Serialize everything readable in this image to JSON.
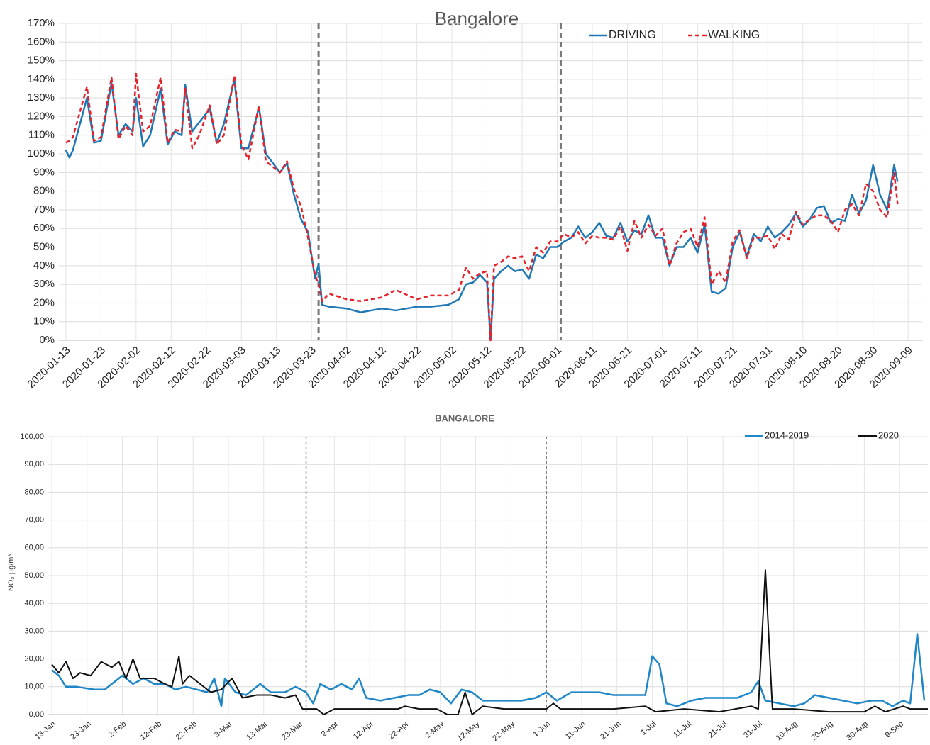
{
  "chart_data": [
    {
      "type": "line",
      "title": "Bangalore",
      "legend": "top-right",
      "grid": true,
      "xlim": [
        "2020-01-11",
        "2020-09-13"
      ],
      "xticks": [
        "2020-01-13",
        "2020-01-23",
        "2020-02-02",
        "2020-02-12",
        "2020-02-22",
        "2020-03-03",
        "2020-03-13",
        "2020-03-23",
        "2020-04-02",
        "2020-04-12",
        "2020-04-22",
        "2020-05-02",
        "2020-05-12",
        "2020-05-22",
        "2020-06-01",
        "2020-06-11",
        "2020-06-21",
        "2020-07-01",
        "2020-07-11",
        "2020-07-21",
        "2020-07-31",
        "2020-08-10",
        "2020-08-20",
        "2020-08-30",
        "2020-09-09"
      ],
      "ylim": [
        0,
        170
      ],
      "yticks": [
        {
          "value": 0,
          "label": "0%"
        },
        {
          "value": 10,
          "label": "10%"
        },
        {
          "value": 20,
          "label": "20%"
        },
        {
          "value": 30,
          "label": "30%"
        },
        {
          "value": 40,
          "label": "40%"
        },
        {
          "value": 50,
          "label": "50%"
        },
        {
          "value": 60,
          "label": "60%"
        },
        {
          "value": 70,
          "label": "70%"
        },
        {
          "value": 80,
          "label": "80%"
        },
        {
          "value": 90,
          "label": "90%"
        },
        {
          "value": 100,
          "label": "100%"
        },
        {
          "value": 110,
          "label": "110%"
        },
        {
          "value": 120,
          "label": "120%"
        },
        {
          "value": 130,
          "label": "130%"
        },
        {
          "value": 140,
          "label": "140%"
        },
        {
          "value": 150,
          "label": "150%"
        },
        {
          "value": 160,
          "label": "160%"
        },
        {
          "value": 170,
          "label": "170%"
        }
      ],
      "vlines": [
        "2020-03-25",
        "2020-06-02"
      ],
      "x": [
        "2020-01-13",
        "2020-01-14",
        "2020-01-15",
        "2020-01-19",
        "2020-01-21",
        "2020-01-23",
        "2020-01-26",
        "2020-01-28",
        "2020-01-30",
        "2020-02-01",
        "2020-02-02",
        "2020-02-04",
        "2020-02-06",
        "2020-02-09",
        "2020-02-11",
        "2020-02-13",
        "2020-02-15",
        "2020-02-16",
        "2020-02-18",
        "2020-02-20",
        "2020-02-23",
        "2020-02-25",
        "2020-02-27",
        "2020-03-01",
        "2020-03-03",
        "2020-03-05",
        "2020-03-08",
        "2020-03-10",
        "2020-03-12",
        "2020-03-14",
        "2020-03-16",
        "2020-03-18",
        "2020-03-20",
        "2020-03-22",
        "2020-03-24",
        "2020-03-25",
        "2020-03-26",
        "2020-03-28",
        "2020-04-02",
        "2020-04-06",
        "2020-04-12",
        "2020-04-16",
        "2020-04-22",
        "2020-04-26",
        "2020-05-01",
        "2020-05-04",
        "2020-05-06",
        "2020-05-08",
        "2020-05-10",
        "2020-05-12",
        "2020-05-13",
        "2020-05-14",
        "2020-05-16",
        "2020-05-18",
        "2020-05-20",
        "2020-05-22",
        "2020-05-24",
        "2020-05-26",
        "2020-05-28",
        "2020-05-30",
        "2020-06-01",
        "2020-06-03",
        "2020-06-05",
        "2020-06-07",
        "2020-06-09",
        "2020-06-11",
        "2020-06-13",
        "2020-06-15",
        "2020-06-17",
        "2020-06-19",
        "2020-06-21",
        "2020-06-23",
        "2020-06-25",
        "2020-06-27",
        "2020-06-29",
        "2020-07-01",
        "2020-07-03",
        "2020-07-05",
        "2020-07-07",
        "2020-07-09",
        "2020-07-11",
        "2020-07-13",
        "2020-07-15",
        "2020-07-17",
        "2020-07-19",
        "2020-07-21",
        "2020-07-23",
        "2020-07-25",
        "2020-07-27",
        "2020-07-29",
        "2020-07-31",
        "2020-08-02",
        "2020-08-04",
        "2020-08-06",
        "2020-08-08",
        "2020-08-10",
        "2020-08-12",
        "2020-08-14",
        "2020-08-16",
        "2020-08-18",
        "2020-08-20",
        "2020-08-22",
        "2020-08-24",
        "2020-08-26",
        "2020-08-28",
        "2020-08-30",
        "2020-09-01",
        "2020-09-03",
        "2020-09-05",
        "2020-09-06"
      ],
      "series": [
        {
          "name": "DRIVING",
          "color": "#1f77b4",
          "line_style": "solid",
          "values": [
            102,
            98,
            102,
            130,
            106,
            107,
            138,
            110,
            116,
            112,
            130,
            104,
            110,
            135,
            105,
            112,
            110,
            137,
            112,
            117,
            124,
            106,
            116,
            140,
            103,
            103,
            125,
            100,
            95,
            90,
            95,
            78,
            65,
            58,
            33,
            41,
            19,
            18,
            17,
            15,
            17,
            16,
            18,
            18,
            19,
            22,
            30,
            31,
            35,
            31,
            0,
            33,
            37,
            40,
            37,
            38,
            33,
            46,
            44,
            50,
            50,
            53,
            55,
            61,
            55,
            58,
            63,
            56,
            55,
            63,
            53,
            59,
            57,
            67,
            55,
            55,
            40,
            50,
            50,
            55,
            47,
            62,
            26,
            25,
            28,
            50,
            58,
            45,
            57,
            53,
            61,
            55,
            58,
            62,
            68,
            61,
            65,
            71,
            72,
            63,
            65,
            64,
            78,
            68,
            75,
            94,
            78,
            70,
            94,
            85
          ]
        },
        {
          "name": "WALKING",
          "color": "#e8202a",
          "line_style": "dashed",
          "values": [
            106,
            107,
            109,
            136,
            107,
            109,
            141,
            108,
            115,
            110,
            143,
            112,
            115,
            141,
            106,
            113,
            112,
            135,
            103,
            110,
            126,
            105,
            110,
            142,
            105,
            97,
            126,
            96,
            93,
            90,
            96,
            81,
            72,
            55,
            35,
            30,
            21,
            25,
            22,
            21,
            23,
            27,
            22,
            24,
            24,
            27,
            39,
            33,
            36,
            37,
            0,
            40,
            42,
            45,
            44,
            45,
            37,
            50,
            47,
            53,
            53,
            57,
            55,
            58,
            52,
            56,
            55,
            55,
            54,
            61,
            48,
            64,
            55,
            62,
            56,
            60,
            40,
            52,
            58,
            60,
            50,
            66,
            30,
            37,
            31,
            53,
            59,
            44,
            55,
            55,
            56,
            49,
            57,
            54,
            69,
            62,
            65,
            67,
            67,
            64,
            58,
            70,
            73,
            67,
            84,
            80,
            70,
            66,
            90,
            73
          ]
        }
      ]
    },
    {
      "type": "line",
      "title": "BANGALORE",
      "ylabel": "NO₂ µg/m³",
      "legend": "top-right",
      "grid": true,
      "xlim": [
        "12-Jan",
        "17-Sep"
      ],
      "xticks": [
        "13-Jan",
        "23-Jan",
        "2-Feb",
        "12-Feb",
        "22-Feb",
        "3-Mar",
        "13-Mar",
        "23-Mar",
        "2-Apr",
        "12-Apr",
        "22-Apr",
        "2-May",
        "12-May",
        "22-May",
        "1-Jun",
        "11-Jun",
        "21-Jun",
        "1-Jul",
        "11-Jul",
        "21-Jul",
        "31-Jul",
        "10-Aug",
        "20-Aug",
        "30-Aug",
        "9-Sep"
      ],
      "ylim": [
        0,
        100
      ],
      "yticks": [
        {
          "value": 0,
          "label": "0,00"
        },
        {
          "value": 10,
          "label": "10,00"
        },
        {
          "value": 20,
          "label": "20,00"
        },
        {
          "value": 30,
          "label": "30,00"
        },
        {
          "value": 40,
          "label": "40,00"
        },
        {
          "value": 50,
          "label": "50,00"
        },
        {
          "value": 60,
          "label": "60,00"
        },
        {
          "value": 70,
          "label": "70,00"
        },
        {
          "value": 80,
          "label": "80,00"
        },
        {
          "value": 90,
          "label": "90,00"
        },
        {
          "value": 100,
          "label": "100,00"
        }
      ],
      "vlines": [
        "25-Mar",
        "1-Jun"
      ],
      "series": [
        {
          "name": "2014-2019",
          "color": "#1f86c8",
          "line_style": "solid",
          "x": [
            "13-Jan",
            "15-Jan",
            "17-Jan",
            "20-Jan",
            "25-Jan",
            "28-Jan",
            "30-Jan",
            "2-Feb",
            "5-Feb",
            "8-Feb",
            "11-Feb",
            "14-Feb",
            "17-Feb",
            "20-Feb",
            "23-Feb",
            "26-Feb",
            "28-Feb",
            "1-Mar",
            "2-Mar",
            "5-Mar",
            "8-Mar",
            "12-Mar",
            "15-Mar",
            "19-Mar",
            "22-Mar",
            "25-Mar",
            "27-Mar",
            "29-Mar",
            "1-Apr",
            "4-Apr",
            "7-Apr",
            "9-Apr",
            "11-Apr",
            "15-Apr",
            "19-Apr",
            "23-Apr",
            "26-Apr",
            "29-Apr",
            "2-May",
            "5-May",
            "8-May",
            "11-May",
            "14-May",
            "17-May",
            "21-May",
            "25-May",
            "29-May",
            "1-Jun",
            "4-Jun",
            "8-Jun",
            "12-Jun",
            "16-Jun",
            "20-Jun",
            "25-Jun",
            "29-Jun",
            "1-Jul",
            "3-Jul",
            "5-Jul",
            "8-Jul",
            "12-Jul",
            "16-Jul",
            "21-Jul",
            "25-Jul",
            "29-Jul",
            "31-Jul",
            "2-Aug",
            "6-Aug",
            "10-Aug",
            "13-Aug",
            "16-Aug",
            "20-Aug",
            "24-Aug",
            "28-Aug",
            "1-Sep",
            "4-Sep",
            "7-Sep",
            "10-Sep",
            "12-Sep",
            "14-Sep",
            "16-Sep"
          ],
          "values": [
            16,
            14,
            10,
            10,
            9,
            9,
            11,
            14,
            11,
            13,
            11,
            11,
            9,
            10,
            9,
            8,
            13,
            3,
            13,
            8,
            7,
            11,
            8,
            8,
            10,
            8,
            4,
            11,
            9,
            11,
            9,
            13,
            6,
            5,
            6,
            7,
            7,
            9,
            8,
            4,
            9,
            8,
            5,
            5,
            5,
            5,
            6,
            8,
            5,
            8,
            8,
            8,
            7,
            7,
            7,
            21,
            18,
            4,
            3,
            5,
            6,
            6,
            6,
            8,
            12,
            5,
            4,
            3,
            4,
            7,
            6,
            5,
            4,
            5,
            5,
            3,
            5,
            4,
            29,
            5
          ]
        },
        {
          "name": "2020",
          "color": "#111111",
          "line_style": "solid",
          "x": [
            "13-Jan",
            "15-Jan",
            "17-Jan",
            "19-Jan",
            "21-Jan",
            "24-Jan",
            "27-Jan",
            "30-Jan",
            "1-Feb",
            "3-Feb",
            "5-Feb",
            "7-Feb",
            "11-Feb",
            "14-Feb",
            "16-Feb",
            "18-Feb",
            "19-Feb",
            "21-Feb",
            "24-Feb",
            "27-Feb",
            "1-Mar",
            "4-Mar",
            "7-Mar",
            "11-Mar",
            "15-Mar",
            "19-Mar",
            "22-Mar",
            "24-Mar",
            "28-Mar",
            "30-Mar",
            "2-Apr",
            "20-Apr",
            "22-Apr",
            "26-Apr",
            "1-May",
            "4-May",
            "7-May",
            "9-May",
            "11-May",
            "14-May",
            "20-May",
            "1-Jun",
            "3-Jun",
            "5-Jun",
            "20-Jun",
            "29-Jun",
            "2-Jul",
            "10-Jul",
            "20-Jul",
            "29-Jul",
            "31-Jul",
            "2-Aug",
            "4-Aug",
            "10-Aug",
            "20-Aug",
            "30-Aug",
            "2-Sep",
            "5-Sep",
            "10-Sep",
            "12-Sep",
            "17-Sep"
          ],
          "values": [
            18,
            15,
            19,
            13,
            15,
            14,
            19,
            17,
            19,
            13,
            20,
            13,
            13,
            11,
            10,
            21,
            11,
            14,
            11,
            8,
            9,
            13,
            6,
            7,
            7,
            6,
            7,
            2,
            2,
            0,
            2,
            2,
            3,
            2,
            2,
            0,
            0,
            8,
            0,
            3,
            2,
            2,
            4,
            2,
            2,
            3,
            1,
            2,
            1,
            3,
            2,
            52,
            2,
            2,
            1,
            1,
            3,
            1,
            3,
            2,
            2
          ]
        }
      ]
    }
  ]
}
